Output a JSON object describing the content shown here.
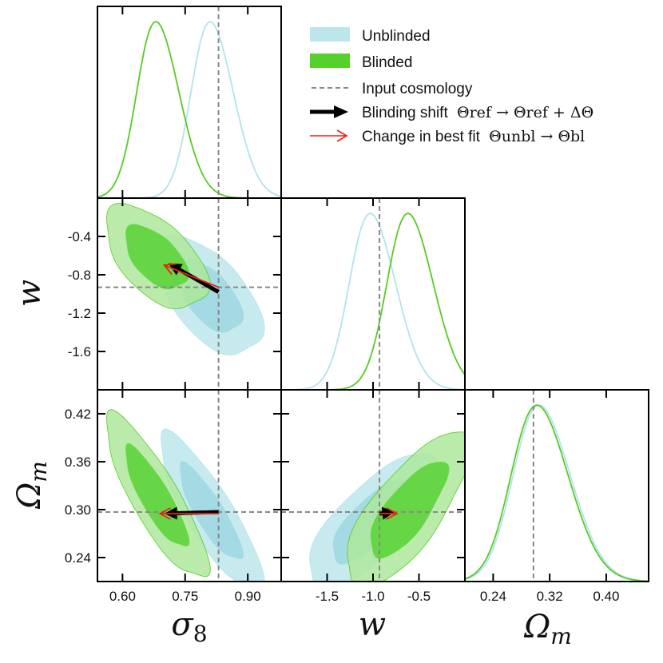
{
  "chart_data": {
    "type": "triangle-corner-plot",
    "parameters": [
      {
        "key": "sigma8",
        "axis_label": "σ8",
        "range": [
          0.54,
          0.98
        ],
        "ticks": [
          "0.60",
          "0.75",
          "0.90"
        ],
        "tick_values": [
          0.6,
          0.75,
          0.9
        ]
      },
      {
        "key": "w",
        "axis_label": "w",
        "range": [
          -2.0,
          0.0
        ],
        "ticks": [
          "-1.5",
          "-1.0",
          "-0.5"
        ],
        "tick_values": [
          -1.5,
          -1.0,
          -0.5
        ],
        "y_ticks": [
          "-0.4",
          "-0.8",
          "-1.2",
          "-1.6"
        ],
        "y_tick_values": [
          -0.4,
          -0.8,
          -1.2,
          -1.6
        ],
        "y_range": [
          -2.0,
          0.0
        ]
      },
      {
        "key": "Om",
        "axis_label": "Ωm",
        "range": [
          0.2,
          0.46
        ],
        "ticks": [
          "0.24",
          "0.32",
          "0.40"
        ],
        "tick_values": [
          0.24,
          0.32,
          0.4
        ],
        "y_ticks": [
          "0.42",
          "0.36",
          "0.30",
          "0.24"
        ],
        "y_tick_values": [
          0.42,
          0.36,
          0.3,
          0.24
        ],
        "y_range": [
          0.21,
          0.45
        ]
      }
    ],
    "input_cosmology": {
      "sigma8": 0.83,
      "w": -0.93,
      "Om": 0.297
    },
    "series": [
      {
        "name": "Unblinded",
        "color": "#bde6ec",
        "inner_color": "#9fd8e2",
        "line_color": "#b3e3ea",
        "sigma8": {
          "mean": 0.81,
          "sd": 0.05
        },
        "w": {
          "mean": -1.03,
          "sd": 0.25
        },
        "Om": {
          "mean": 0.305,
          "sd": 0.04
        },
        "contours": {
          "sigma8_w": {
            "mean": [
              0.81,
              -1.03
            ],
            "sd": [
              0.05,
              0.25
            ],
            "rho": -0.55
          },
          "sigma8_Om": {
            "mean": [
              0.81,
              0.296
            ],
            "sd": [
              0.05,
              0.04
            ],
            "rho": -0.85
          },
          "w_Om": {
            "mean": [
              -1.03,
              0.285
            ],
            "sd": [
              0.28,
              0.035
            ],
            "rho": 0.75
          }
        }
      },
      {
        "name": "Blinded",
        "color": "#aee79c",
        "inner_color": "#5dd43b",
        "line_color": "#55cc22",
        "sigma8": {
          "mean": 0.68,
          "sd": 0.05
        },
        "w": {
          "mean": -0.62,
          "sd": 0.25
        },
        "Om": {
          "mean": 0.302,
          "sd": 0.04
        },
        "contours": {
          "sigma8_w": {
            "mean": [
              0.68,
              -0.62
            ],
            "sd": [
              0.05,
              0.22
            ],
            "rho": -0.55
          },
          "sigma8_Om": {
            "mean": [
              0.68,
              0.315
            ],
            "sd": [
              0.05,
              0.042
            ],
            "rho": -0.85
          },
          "w_Om": {
            "mean": [
              -0.62,
              0.3
            ],
            "sd": [
              0.28,
              0.04
            ],
            "rho": 0.75
          }
        }
      }
    ],
    "arrows": [
      {
        "name": "Blinding shift",
        "color": "#000000",
        "panels": {
          "sigma8_w": {
            "from": [
              0.83,
              -0.98
            ],
            "to": [
              0.71,
              -0.68
            ]
          },
          "sigma8_Om": {
            "from": [
              0.83,
              0.297
            ],
            "to": [
              0.7,
              0.295
            ]
          },
          "w_Om": {
            "from": [
              -0.93,
              0.295
            ],
            "to": [
              -0.76,
              0.297
            ]
          }
        }
      },
      {
        "name": "Change in best fit",
        "color": "#ee2211",
        "panels": {
          "sigma8_w": {
            "from": [
              0.83,
              -0.93
            ],
            "to": [
              0.7,
              -0.7
            ]
          },
          "sigma8_Om": {
            "from": [
              0.83,
              0.295
            ],
            "to": [
              0.69,
              0.295
            ]
          },
          "w_Om": {
            "from": [
              -0.93,
              0.295
            ],
            "to": [
              -0.74,
              0.295
            ]
          }
        }
      }
    ],
    "legend": {
      "placement": "top-right",
      "entries": [
        {
          "label": "Unblinded",
          "kind": "patch",
          "color": "#bde6ec"
        },
        {
          "label": "Blinded",
          "kind": "patch",
          "color": "#55d12a"
        },
        {
          "label": "Input  cosmology",
          "kind": "dashed",
          "color": "#888888"
        },
        {
          "label": "Blinding shift",
          "math": "Θref → Θref + ΔΘ",
          "kind": "arrow",
          "color": "#000000"
        },
        {
          "label": "Change  in  best fit",
          "math": "Θunbl → Θbl",
          "kind": "thin-arrow",
          "color": "#ee2211"
        }
      ]
    }
  }
}
